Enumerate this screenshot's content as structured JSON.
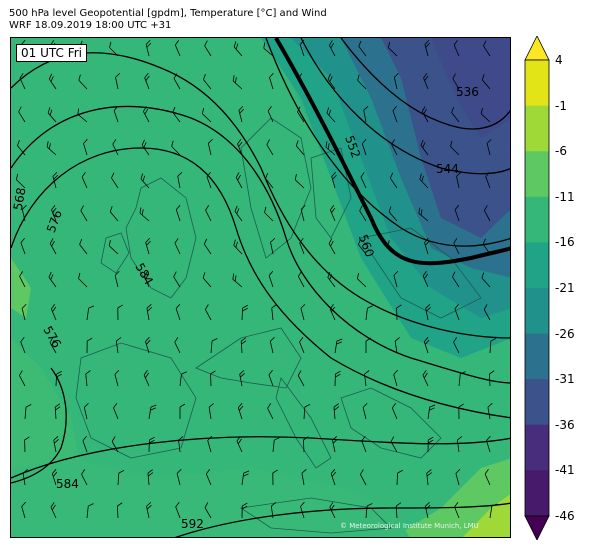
{
  "header": {
    "line1": "500 hPa level Geopotential [gpdm], Temperature [°C] and Wind",
    "line2": "WRF 18.09.2019 18:00 UTC +31"
  },
  "time_badge": "01 UTC Fri",
  "credit": "© Meteorological Institute Munich, LMU",
  "colorbar": {
    "labels": [
      "4",
      "-1",
      "-6",
      "-11",
      "-16",
      "-21",
      "-26",
      "-31",
      "-36",
      "-41",
      "-46"
    ],
    "colors": {
      "top_arrow": "#fde725",
      "b4": "#e2e418",
      "b_1": "#9fd938",
      "b_6": "#5ec962",
      "b_11": "#35b779",
      "b_16": "#20a386",
      "b_21": "#21918c",
      "b_26": "#2c728e",
      "b_31": "#3b528b",
      "b_36": "#472d7b",
      "b_41": "#481a6c",
      "bottom_arrow": "#440154"
    }
  },
  "contours": {
    "labels": [
      "536",
      "544",
      "552",
      "560",
      "568",
      "576",
      "584",
      "592"
    ]
  }
}
